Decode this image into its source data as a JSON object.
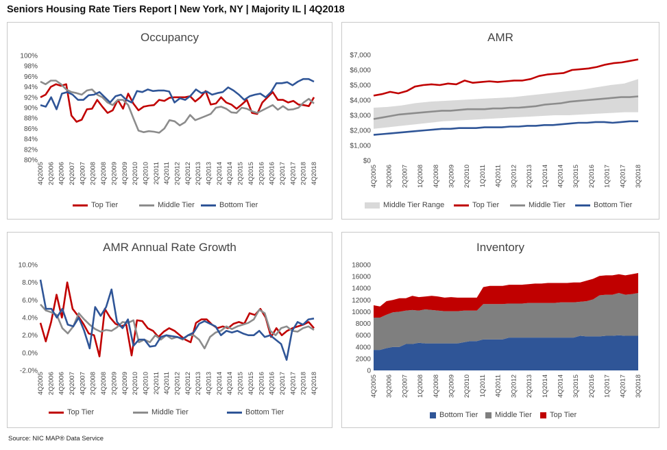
{
  "report_title": "Seniors Housing Rate Tiers Report | New York, NY | Majority IL | 4Q2018",
  "source_label": "Source: NIC MAP® Data Service",
  "colors": {
    "top": "#c00000",
    "middle": "#8c8c8c",
    "bottom": "#2f5597",
    "range": "#d9d9d9",
    "inv_bottom": "#2f5597",
    "inv_middle": "#7f7f7f",
    "inv_top": "#c00000"
  },
  "chart_data": [
    {
      "id": "occupancy",
      "type": "line",
      "title": "Occupancy",
      "ylim": [
        0.8,
        1.0
      ],
      "y_ticks": [
        0.8,
        0.82,
        0.84,
        0.86,
        0.88,
        0.9,
        0.92,
        0.94,
        0.96,
        0.98,
        1.0
      ],
      "y_tick_labels": [
        "80%",
        "82%",
        "84%",
        "86%",
        "88%",
        "90%",
        "92%",
        "94%",
        "96%",
        "98%",
        "100%"
      ],
      "x_tick_labels": [
        "4Q2005",
        "2Q2006",
        "4Q2006",
        "2Q2007",
        "4Q2007",
        "2Q2008",
        "4Q2008",
        "2Q2009",
        "4Q2009",
        "2Q2010",
        "4Q2010",
        "2Q2011",
        "4Q2011",
        "2Q2012",
        "4Q2012",
        "2Q2013",
        "4Q2013",
        "2Q2014",
        "4Q2014",
        "2Q2015",
        "4Q2015",
        "2Q2016",
        "4Q2016",
        "2Q2017",
        "4Q2017",
        "2Q2018",
        "4Q2018"
      ],
      "legend": [
        "Top Tier",
        "Middle Tier",
        "Bottom Tier"
      ],
      "series": [
        {
          "name": "Top Tier",
          "color_key": "top",
          "values": [
            0.92,
            0.925,
            0.94,
            0.945,
            0.942,
            0.945,
            0.885,
            0.873,
            0.877,
            0.897,
            0.898,
            0.915,
            0.902,
            0.89,
            0.895,
            0.915,
            0.898,
            0.927,
            0.908,
            0.895,
            0.902,
            0.904,
            0.905,
            0.915,
            0.913,
            0.919,
            0.92,
            0.92,
            0.92,
            0.922,
            0.912,
            0.92,
            0.932,
            0.906,
            0.908,
            0.92,
            0.91,
            0.906,
            0.898,
            0.906,
            0.915,
            0.89,
            0.888,
            0.91,
            0.92,
            0.93,
            0.915,
            0.915,
            0.91,
            0.913,
            0.906,
            0.905,
            0.903,
            0.92
          ]
        },
        {
          "name": "Middle Tier",
          "color_key": "middle",
          "values": [
            0.95,
            0.945,
            0.952,
            0.952,
            0.945,
            0.935,
            0.93,
            0.928,
            0.925,
            0.933,
            0.935,
            0.925,
            0.92,
            0.91,
            0.905,
            0.915,
            0.915,
            0.905,
            0.88,
            0.856,
            0.853,
            0.855,
            0.854,
            0.852,
            0.86,
            0.876,
            0.874,
            0.866,
            0.872,
            0.886,
            0.876,
            0.88,
            0.884,
            0.888,
            0.9,
            0.902,
            0.898,
            0.891,
            0.89,
            0.9,
            0.898,
            0.893,
            0.89,
            0.895,
            0.9,
            0.905,
            0.896,
            0.903,
            0.896,
            0.897,
            0.9,
            0.91,
            0.917,
            0.908
          ]
        },
        {
          "name": "Bottom Tier",
          "color_key": "bottom",
          "values": [
            0.905,
            0.902,
            0.92,
            0.897,
            0.927,
            0.93,
            0.925,
            0.915,
            0.915,
            0.924,
            0.925,
            0.93,
            0.92,
            0.91,
            0.922,
            0.925,
            0.915,
            0.91,
            0.932,
            0.93,
            0.935,
            0.932,
            0.933,
            0.933,
            0.931,
            0.91,
            0.918,
            0.915,
            0.923,
            0.935,
            0.928,
            0.931,
            0.925,
            0.928,
            0.93,
            0.939,
            0.933,
            0.925,
            0.915,
            0.922,
            0.925,
            0.927,
            0.92,
            0.93,
            0.947,
            0.947,
            0.949,
            0.943,
            0.95,
            0.955,
            0.955,
            0.95
          ]
        }
      ]
    },
    {
      "id": "amr",
      "type": "line",
      "title": "AMR",
      "ylim": [
        0,
        7000
      ],
      "y_ticks": [
        0,
        1000,
        2000,
        3000,
        4000,
        5000,
        6000,
        7000
      ],
      "y_tick_labels": [
        "$0",
        "$1,000",
        "$2,000",
        "$3,000",
        "$4,000",
        "$5,000",
        "$6,000",
        "$7,000"
      ],
      "x_tick_labels": [
        "4Q2005",
        "3Q2006",
        "2Q2007",
        "1Q2008",
        "4Q2008",
        "3Q2009",
        "2Q2010",
        "1Q2011",
        "4Q2011",
        "3Q2012",
        "2Q2013",
        "1Q2014",
        "4Q2014",
        "3Q2015",
        "2Q2016",
        "1Q2017",
        "4Q2017",
        "3Q2018"
      ],
      "legend": [
        "Middle Tier Range",
        "Top Tier",
        "Middle Tier",
        "Bottom Tier"
      ],
      "range": {
        "name": "Middle Tier Range",
        "color_key": "range",
        "low": [
          2100,
          2200,
          2300,
          2400,
          2500,
          2600,
          2650,
          2700,
          2750,
          2800,
          2850,
          2900,
          2950,
          3000,
          3000,
          3050,
          3100,
          3150,
          3200,
          3200
        ],
        "high": [
          3500,
          3550,
          3650,
          3800,
          3900,
          3950,
          4000,
          4050,
          4100,
          4150,
          4200,
          4300,
          4400,
          4500,
          4600,
          4700,
          4850,
          5000,
          5100,
          5400
        ]
      },
      "series": [
        {
          "name": "Top Tier",
          "color_key": "top",
          "values": [
            4300,
            4400,
            4550,
            4450,
            4600,
            4900,
            5000,
            5050,
            5000,
            5100,
            5050,
            5300,
            5150,
            5200,
            5250,
            5200,
            5250,
            5300,
            5300,
            5400,
            5600,
            5700,
            5750,
            5800,
            6000,
            6050,
            6100,
            6200,
            6350,
            6450,
            6500,
            6600,
            6700
          ]
        },
        {
          "name": "Middle Tier",
          "color_key": "middle",
          "values": [
            2750,
            2850,
            2950,
            3050,
            3100,
            3150,
            3200,
            3250,
            3300,
            3300,
            3350,
            3400,
            3400,
            3400,
            3450,
            3450,
            3500,
            3500,
            3550,
            3600,
            3700,
            3750,
            3800,
            3900,
            3950,
            4000,
            4050,
            4100,
            4150,
            4200,
            4200,
            4250
          ]
        },
        {
          "name": "Bottom Tier",
          "color_key": "bottom",
          "values": [
            1700,
            1750,
            1800,
            1850,
            1900,
            1950,
            2000,
            2050,
            2100,
            2100,
            2150,
            2150,
            2150,
            2200,
            2200,
            2200,
            2250,
            2250,
            2300,
            2300,
            2350,
            2350,
            2400,
            2450,
            2500,
            2500,
            2550,
            2550,
            2500,
            2550,
            2600,
            2600
          ]
        }
      ]
    },
    {
      "id": "amr_growth",
      "type": "line",
      "title": "AMR Annual Rate Growth",
      "ylim": [
        -0.02,
        0.1
      ],
      "y_ticks": [
        -0.02,
        0.0,
        0.02,
        0.04,
        0.06,
        0.08,
        0.1
      ],
      "y_tick_labels": [
        "-2.0%",
        "0.0%",
        "2.0%",
        "4.0%",
        "6.0%",
        "8.0%",
        "10.0%"
      ],
      "x_tick_labels": [
        "4Q2005",
        "2Q2006",
        "4Q2006",
        "2Q2007",
        "4Q2007",
        "2Q2008",
        "4Q2008",
        "2Q2009",
        "4Q2009",
        "2Q2010",
        "4Q2010",
        "2Q2011",
        "4Q2011",
        "2Q2012",
        "4Q2012",
        "2Q2013",
        "4Q2013",
        "2Q2014",
        "4Q2014",
        "2Q2015",
        "4Q2015",
        "2Q2016",
        "4Q2016",
        "2Q2017",
        "4Q2017",
        "2Q2018",
        "4Q2018"
      ],
      "legend": [
        "Top Tier",
        "Middle Tier",
        "Bottom Tier"
      ],
      "series": [
        {
          "name": "Top Tier",
          "color_key": "top",
          "values": [
            0.034,
            0.013,
            0.035,
            0.066,
            0.04,
            0.08,
            0.05,
            0.042,
            0.033,
            0.022,
            0.02,
            -0.004,
            0.05,
            0.04,
            0.033,
            0.03,
            0.032,
            -0.003,
            0.037,
            0.036,
            0.028,
            0.025,
            0.018,
            0.024,
            0.028,
            0.025,
            0.02,
            0.015,
            0.012,
            0.034,
            0.038,
            0.038,
            0.032,
            0.028,
            0.03,
            0.028,
            0.033,
            0.035,
            0.033,
            0.045,
            0.043,
            0.05,
            0.04,
            0.018,
            0.028,
            0.02,
            0.025,
            0.028,
            0.03,
            0.032,
            0.035,
            0.028
          ]
        },
        {
          "name": "Middle Tier",
          "color_key": "middle",
          "values": [
            0.055,
            0.048,
            0.046,
            0.043,
            0.028,
            0.022,
            0.03,
            0.045,
            0.038,
            0.032,
            0.027,
            0.024,
            0.026,
            0.025,
            0.029,
            0.035,
            0.034,
            0.037,
            0.012,
            0.015,
            0.012,
            0.02,
            0.015,
            0.02,
            0.016,
            0.018,
            0.015,
            0.02,
            0.02,
            0.015,
            0.005,
            0.018,
            0.023,
            0.025,
            0.03,
            0.027,
            0.03,
            0.032,
            0.034,
            0.038,
            0.049,
            0.045,
            0.025,
            0.02,
            0.028,
            0.03,
            0.025,
            0.024,
            0.028,
            0.03,
            0.026
          ]
        },
        {
          "name": "Bottom Tier",
          "color_key": "bottom",
          "values": [
            0.083,
            0.05,
            0.05,
            0.04,
            0.05,
            0.032,
            0.03,
            0.04,
            0.025,
            0.005,
            0.052,
            0.042,
            0.052,
            0.072,
            0.035,
            0.028,
            0.038,
            0.008,
            0.015,
            0.015,
            0.007,
            0.008,
            0.018,
            0.02,
            0.019,
            0.018,
            0.016,
            0.02,
            0.023,
            0.033,
            0.036,
            0.033,
            0.03,
            0.02,
            0.025,
            0.023,
            0.025,
            0.022,
            0.02,
            0.02,
            0.025,
            0.018,
            0.02,
            0.015,
            0.01,
            -0.008,
            0.025,
            0.035,
            0.032,
            0.038,
            0.039
          ]
        }
      ]
    },
    {
      "id": "inventory",
      "type": "area",
      "stacked": true,
      "title": "Inventory",
      "ylim": [
        0,
        18000
      ],
      "y_ticks": [
        0,
        2000,
        4000,
        6000,
        8000,
        10000,
        12000,
        14000,
        16000,
        18000
      ],
      "y_tick_labels": [
        "0",
        "2000",
        "4000",
        "6000",
        "8000",
        "10000",
        "12000",
        "14000",
        "16000",
        "18000"
      ],
      "x_tick_labels": [
        "4Q2005",
        "3Q2006",
        "2Q2007",
        "1Q2008",
        "4Q2008",
        "3Q2009",
        "2Q2010",
        "1Q2011",
        "4Q2011",
        "3Q2012",
        "2Q2013",
        "1Q2014",
        "4Q2014",
        "3Q2015",
        "2Q2016",
        "1Q2017",
        "4Q2017",
        "3Q2018"
      ],
      "legend": [
        "Bottom Tier",
        "Middle Tier",
        "Top Tier"
      ],
      "series": [
        {
          "name": "Bottom Tier",
          "color_key": "inv_bottom",
          "values": [
            3500,
            3500,
            3800,
            4000,
            4000,
            4500,
            4500,
            4700,
            4600,
            4600,
            4600,
            4600,
            4600,
            4600,
            4800,
            5000,
            5000,
            5300,
            5300,
            5300,
            5300,
            5600,
            5600,
            5600,
            5600,
            5600,
            5600,
            5600,
            5600,
            5600,
            5600,
            5600,
            5900,
            5800,
            5800,
            5800,
            5900,
            5900,
            6000,
            5900,
            5900,
            5900
          ]
        },
        {
          "name": "Middle Tier",
          "color_key": "inv_middle",
          "values": [
            5500,
            5500,
            5700,
            5900,
            6000,
            5700,
            5800,
            5500,
            5800,
            5700,
            5600,
            5500,
            5500,
            5500,
            5400,
            5200,
            5200,
            6000,
            6000,
            6000,
            6000,
            5800,
            5800,
            5800,
            5900,
            5900,
            5900,
            5900,
            5900,
            6000,
            6000,
            6000,
            5800,
            6000,
            6300,
            7000,
            7000,
            7000,
            7200,
            7000,
            7100,
            7300
          ]
        },
        {
          "name": "Top Tier",
          "color_key": "inv_top",
          "values": [
            2100,
            1900,
            2300,
            2100,
            2300,
            2100,
            2400,
            2300,
            2200,
            2400,
            2400,
            2300,
            2400,
            2300,
            2200,
            2200,
            2200,
            2900,
            3100,
            3100,
            3100,
            3200,
            3200,
            3200,
            3200,
            3300,
            3300,
            3400,
            3400,
            3300,
            3300,
            3400,
            3300,
            3500,
            3500,
            3300,
            3300,
            3300,
            3200,
            3300,
            3400,
            3400
          ]
        }
      ]
    }
  ]
}
